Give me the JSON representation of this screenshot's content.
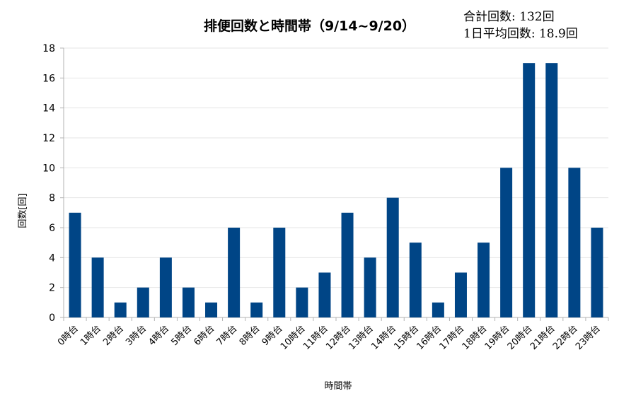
{
  "chart_data": {
    "type": "bar",
    "title": "排便回数と時間帯（9/14~9/20）",
    "annotations": [
      "合計回数: 132回",
      "1日平均回数: 18.9回"
    ],
    "xlabel": "時間帯",
    "ylabel": "回数[回]",
    "ylim": [
      0,
      18
    ],
    "yticks": [
      0,
      2,
      4,
      6,
      8,
      10,
      12,
      14,
      16,
      18
    ],
    "grid": true,
    "categories": [
      "0時台",
      "1時台",
      "2時台",
      "3時台",
      "4時台",
      "5時台",
      "6時台",
      "7時台",
      "8時台",
      "9時台",
      "10時台",
      "11時台",
      "12時台",
      "13時台",
      "14時台",
      "15時台",
      "16時台",
      "17時台",
      "18時台",
      "19時台",
      "20時台",
      "21時台",
      "22時台",
      "23時台"
    ],
    "values": [
      7,
      4,
      1,
      2,
      4,
      2,
      1,
      6,
      1,
      6,
      2,
      3,
      7,
      4,
      8,
      5,
      1,
      3,
      5,
      10,
      17,
      17,
      10,
      6
    ],
    "bar_color": "#004586"
  }
}
